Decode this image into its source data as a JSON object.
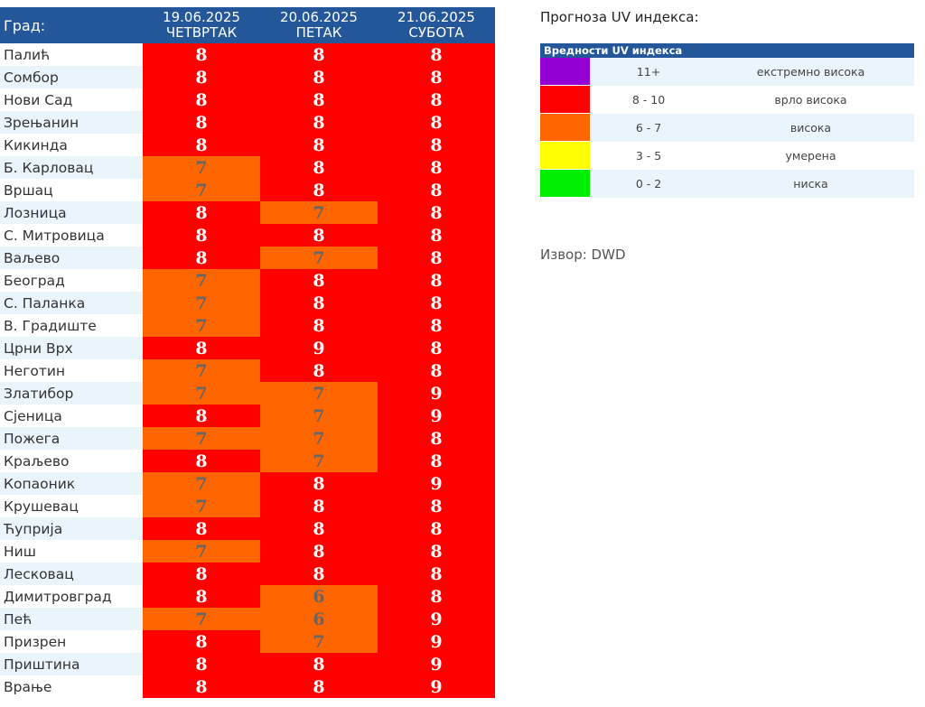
{
  "table": {
    "city_header": "Град:",
    "days": [
      {
        "date": "19.06.2025",
        "weekday": "ЧЕТВРТАК"
      },
      {
        "date": "20.06.2025",
        "weekday": "ПЕТАК"
      },
      {
        "date": "21.06.2025",
        "weekday": "СУБОТА"
      }
    ],
    "rows": [
      {
        "city": "Палић",
        "v": [
          8,
          8,
          8
        ]
      },
      {
        "city": "Сомбор",
        "v": [
          8,
          8,
          8
        ]
      },
      {
        "city": "Нови Сад",
        "v": [
          8,
          8,
          8
        ]
      },
      {
        "city": "Зрењанин",
        "v": [
          8,
          8,
          8
        ]
      },
      {
        "city": "Кикинда",
        "v": [
          8,
          8,
          8
        ]
      },
      {
        "city": "Б. Карловац",
        "v": [
          7,
          8,
          8
        ]
      },
      {
        "city": "Вршац",
        "v": [
          7,
          8,
          8
        ]
      },
      {
        "city": "Лозница",
        "v": [
          8,
          7,
          8
        ]
      },
      {
        "city": "С. Митровица",
        "v": [
          8,
          8,
          8
        ]
      },
      {
        "city": "Ваљево",
        "v": [
          8,
          7,
          8
        ]
      },
      {
        "city": "Београд",
        "v": [
          7,
          8,
          8
        ]
      },
      {
        "city": "С. Паланка",
        "v": [
          7,
          8,
          8
        ]
      },
      {
        "city": "В. Градиште",
        "v": [
          7,
          8,
          8
        ]
      },
      {
        "city": "Црни Врх",
        "v": [
          8,
          9,
          8
        ]
      },
      {
        "city": "Неготин",
        "v": [
          7,
          8,
          8
        ]
      },
      {
        "city": "Златибор",
        "v": [
          7,
          7,
          9
        ]
      },
      {
        "city": "Сјеница",
        "v": [
          8,
          7,
          9
        ]
      },
      {
        "city": "Пожега",
        "v": [
          7,
          7,
          8
        ]
      },
      {
        "city": "Краљево",
        "v": [
          8,
          7,
          8
        ]
      },
      {
        "city": "Копаоник",
        "v": [
          7,
          8,
          9
        ]
      },
      {
        "city": "Крушевац",
        "v": [
          7,
          8,
          8
        ]
      },
      {
        "city": "Ћуприја",
        "v": [
          8,
          8,
          8
        ]
      },
      {
        "city": "Ниш",
        "v": [
          7,
          8,
          8
        ]
      },
      {
        "city": "Лесковац",
        "v": [
          8,
          8,
          8
        ]
      },
      {
        "city": "Димитровград",
        "v": [
          8,
          6,
          8
        ]
      },
      {
        "city": "Пећ",
        "v": [
          7,
          6,
          9
        ]
      },
      {
        "city": "Призрен",
        "v": [
          8,
          7,
          9
        ]
      },
      {
        "city": "Приштина",
        "v": [
          8,
          8,
          9
        ]
      },
      {
        "city": "Врање",
        "v": [
          8,
          8,
          9
        ]
      }
    ]
  },
  "legend": {
    "title": "Прогноза UV индекса:",
    "header": "Вредности UV индекса",
    "items": [
      {
        "color": "#9400d3",
        "range": "11+",
        "label": "екстремно висока"
      },
      {
        "color": "#ff0000",
        "range": "8 - 10",
        "label": "врло висока"
      },
      {
        "color": "#ff6600",
        "range": "6 - 7",
        "label": "висока"
      },
      {
        "color": "#ffff00",
        "range": "3 - 5",
        "label": "умерена"
      },
      {
        "color": "#00ee00",
        "range": "0 - 2",
        "label": "ниска"
      }
    ]
  },
  "source": "Извор: DWD"
}
